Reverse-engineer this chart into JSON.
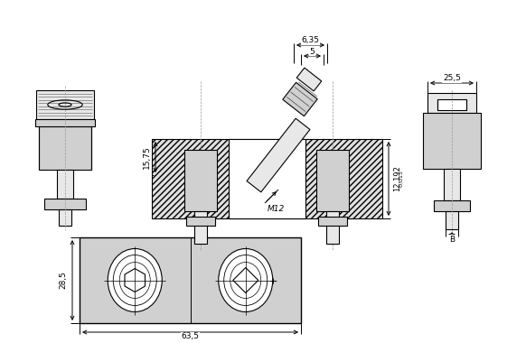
{
  "bg_color": "#ffffff",
  "gray_fill": "#d0d0d0",
  "gray_light": "#e8e8e8",
  "line_color": "#000000",
  "dim_color": "#000000",
  "center_line_color": "#999999",
  "dim_6_35": "6,35",
  "dim_5": "5",
  "dim_15_75": "15,75",
  "dim_m12": "M12",
  "dim_12_192": "12,192",
  "dim_tol": "-0,013",
  "dim_25_5": "25,5",
  "dim_B": "B",
  "dim_28_5": "28,5",
  "dim_63_5": "63,5",
  "fig_width": 5.82,
  "fig_height": 3.8,
  "dpi": 100
}
